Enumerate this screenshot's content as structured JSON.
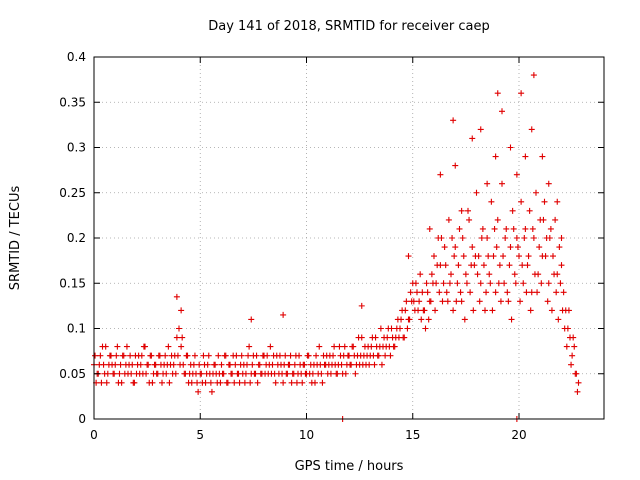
{
  "chart_data": {
    "type": "scatter",
    "title": "Day 141 of 2018, SRMTID for receiver caep",
    "xlabel": "GPS time / hours",
    "ylabel": "SRMTID / TECUs",
    "xlim": [
      0,
      24
    ],
    "ylim": [
      0,
      0.4
    ],
    "grid": true,
    "legend": "none",
    "marker": "+",
    "color": "#e00000",
    "x_ticks": [
      0,
      5,
      10,
      15,
      20
    ],
    "x_tick_labels": [
      "0",
      "5",
      "10",
      "15",
      "20"
    ],
    "y_ticks": [
      0,
      0.05,
      0.1,
      0.15,
      0.2,
      0.25,
      0.3,
      0.35,
      0.4
    ],
    "y_tick_labels": [
      "0",
      "0.05",
      "0.1",
      "0.15",
      "0.2",
      "0.25",
      "0.3",
      "0.35",
      "0.4"
    ],
    "series": [
      {
        "name": "SRMTID",
        "x": [
          0.0,
          0.1,
          0.2,
          0.3,
          0.4,
          0.5,
          0.6,
          0.7,
          0.8,
          0.9,
          1.0,
          1.1,
          1.2,
          1.3,
          1.4,
          1.5,
          1.6,
          1.7,
          1.8,
          1.9,
          2.0,
          2.1,
          2.2,
          2.3,
          2.4,
          2.5,
          2.6,
          2.7,
          2.8,
          2.9,
          3.0,
          3.1,
          3.2,
          3.3,
          3.4,
          3.5,
          3.6,
          3.7,
          3.8,
          3.9,
          4.0,
          4.1,
          4.2,
          4.3,
          4.4,
          4.5,
          4.6,
          4.7,
          4.8,
          4.9,
          5.0,
          5.1,
          5.2,
          5.3,
          5.4,
          5.5,
          5.6,
          5.7,
          5.8,
          5.9,
          6.0,
          6.1,
          6.2,
          6.3,
          6.4,
          6.5,
          6.6,
          6.7,
          6.8,
          6.9,
          7.0,
          7.1,
          7.2,
          7.3,
          7.4,
          7.5,
          7.6,
          7.7,
          7.8,
          7.9,
          8.0,
          8.1,
          8.2,
          8.3,
          8.4,
          8.5,
          8.6,
          8.7,
          8.8,
          8.9,
          9.0,
          9.1,
          9.2,
          9.3,
          9.4,
          9.5,
          9.6,
          9.7,
          9.8,
          9.9,
          10.0,
          10.1,
          10.2,
          10.3,
          10.4,
          10.5,
          10.6,
          10.7,
          10.8,
          10.9,
          11.0,
          11.1,
          11.2,
          11.3,
          11.4,
          11.5,
          11.6,
          11.7,
          11.8,
          11.9,
          12.0,
          12.1,
          12.2,
          12.3,
          12.4,
          12.5,
          12.6,
          12.7,
          12.8,
          12.9,
          13.0,
          13.1,
          13.2,
          13.3,
          13.4,
          13.5,
          13.6,
          13.7,
          13.8,
          13.9,
          14.0,
          14.1,
          14.2,
          14.3,
          14.4,
          14.5,
          14.6,
          14.7,
          14.8,
          14.9,
          15.0,
          15.1,
          15.2,
          15.3,
          15.4,
          15.5,
          15.6,
          15.7,
          15.8,
          15.9,
          16.0,
          16.1,
          16.2,
          16.3,
          16.4,
          16.5,
          16.6,
          16.7,
          16.8,
          16.9,
          17.0,
          17.1,
          17.2,
          17.3,
          17.4,
          17.5,
          17.6,
          17.7,
          17.8,
          17.9,
          18.0,
          18.1,
          18.2,
          18.3,
          18.4,
          18.5,
          18.6,
          18.7,
          18.8,
          18.9,
          19.0,
          19.1,
          19.2,
          19.3,
          19.4,
          19.5,
          19.6,
          19.7,
          19.8,
          19.9,
          20.0,
          20.1,
          20.2,
          20.3,
          20.4,
          20.5,
          20.6,
          20.7,
          20.8,
          20.9,
          21.0,
          21.1,
          21.2,
          21.3,
          21.4,
          21.5,
          21.6,
          21.7,
          21.8,
          21.9,
          22.0,
          22.1,
          22.2,
          22.3,
          22.4,
          22.5,
          22.6,
          22.7,
          22.8,
          0.05,
          0.15,
          0.25,
          0.35,
          0.45,
          0.55,
          0.65,
          0.75,
          0.85,
          0.95,
          1.05,
          1.15,
          1.25,
          1.35,
          1.45,
          1.55,
          1.65,
          1.75,
          1.85,
          1.95,
          2.05,
          2.15,
          2.25,
          2.35,
          2.45,
          2.55,
          2.65,
          2.75,
          2.85,
          2.95,
          3.05,
          3.15,
          3.25,
          3.35,
          3.45,
          3.55,
          3.65,
          3.75,
          3.85,
          3.95,
          4.05,
          4.15,
          4.25,
          4.35,
          4.45,
          4.55,
          4.65,
          4.75,
          4.85,
          4.95,
          5.05,
          5.15,
          5.25,
          5.35,
          5.45,
          5.55,
          5.65,
          5.75,
          5.85,
          5.95,
          6.05,
          6.15,
          6.25,
          6.35,
          6.45,
          6.55,
          6.65,
          6.75,
          6.85,
          6.95,
          7.05,
          7.15,
          7.25,
          7.35,
          7.45,
          7.55,
          7.65,
          7.75,
          7.85,
          7.95,
          8.05,
          8.15,
          8.25,
          8.35,
          8.45,
          8.55,
          8.65,
          8.75,
          8.85,
          8.95,
          9.05,
          9.15,
          9.25,
          9.35,
          9.45,
          9.55,
          9.65,
          9.75,
          9.85,
          9.95,
          10.05,
          10.15,
          10.25,
          10.35,
          10.45,
          10.55,
          10.65,
          10.75,
          10.85,
          10.95,
          11.05,
          11.15,
          11.25,
          11.35,
          11.45,
          11.55,
          11.65,
          11.75,
          11.85,
          11.95,
          12.05,
          12.15,
          12.25,
          12.35,
          12.45,
          12.55,
          12.65,
          12.75,
          12.85,
          12.95,
          13.05,
          13.15,
          13.25,
          13.35,
          13.45,
          13.55,
          13.65,
          13.75,
          13.85,
          13.95,
          14.05,
          14.15,
          14.25,
          14.35,
          14.45,
          14.55,
          14.65,
          14.75,
          14.85,
          14.95,
          15.05,
          15.15,
          15.25,
          15.35,
          15.45,
          15.55,
          15.65,
          15.75,
          15.85,
          15.95,
          16.05,
          16.15,
          16.25,
          16.35,
          16.45,
          16.55,
          16.65,
          16.75,
          16.85,
          16.95,
          17.05,
          17.15,
          17.25,
          17.35,
          17.45,
          17.55,
          17.65,
          17.75,
          17.85,
          17.95,
          18.05,
          18.15,
          18.25,
          18.35,
          18.45,
          18.55,
          18.65,
          18.75,
          18.85,
          18.95,
          19.05,
          19.15,
          19.25,
          19.35,
          19.45,
          19.55,
          19.65,
          19.75,
          19.85,
          19.95,
          20.05,
          20.15,
          20.25,
          20.35,
          20.45,
          20.55,
          20.65,
          20.75,
          20.85,
          20.95,
          21.05,
          21.15,
          21.25,
          21.35,
          21.45,
          21.55,
          21.65,
          21.75,
          21.85,
          21.95,
          22.05,
          22.15,
          22.25,
          22.35,
          22.45,
          22.55,
          22.65,
          22.75,
          3.9,
          4.1,
          7.4,
          8.9,
          12.6,
          14.8,
          15.8,
          16.3,
          16.9,
          17.0,
          17.3,
          17.8,
          18.2,
          18.5,
          18.9,
          19.0,
          19.2,
          19.6,
          19.9,
          20.1,
          20.3,
          20.6,
          20.7,
          21.1,
          21.4,
          21.8,
          22.0,
          11.7,
          19.9
        ],
        "y": [
          0.06,
          0.04,
          0.05,
          0.07,
          0.08,
          0.05,
          0.04,
          0.06,
          0.07,
          0.05,
          0.06,
          0.08,
          0.05,
          0.04,
          0.07,
          0.06,
          0.05,
          0.07,
          0.06,
          0.04,
          0.05,
          0.07,
          0.06,
          0.05,
          0.08,
          0.06,
          0.04,
          0.07,
          0.05,
          0.06,
          0.05,
          0.07,
          0.04,
          0.06,
          0.05,
          0.08,
          0.06,
          0.05,
          0.07,
          0.09,
          0.1,
          0.08,
          0.06,
          0.05,
          0.07,
          0.05,
          0.04,
          0.06,
          0.05,
          0.03,
          0.05,
          0.04,
          0.06,
          0.05,
          0.07,
          0.04,
          0.05,
          0.06,
          0.04,
          0.05,
          0.06,
          0.05,
          0.07,
          0.04,
          0.06,
          0.05,
          0.04,
          0.07,
          0.05,
          0.06,
          0.05,
          0.04,
          0.06,
          0.08,
          0.05,
          0.07,
          0.05,
          0.04,
          0.06,
          0.05,
          0.07,
          0.06,
          0.05,
          0.08,
          0.06,
          0.05,
          0.07,
          0.05,
          0.06,
          0.04,
          0.07,
          0.05,
          0.06,
          0.04,
          0.05,
          0.07,
          0.05,
          0.06,
          0.04,
          0.06,
          0.05,
          0.07,
          0.06,
          0.05,
          0.04,
          0.06,
          0.08,
          0.05,
          0.07,
          0.06,
          0.05,
          0.07,
          0.06,
          0.08,
          0.05,
          0.06,
          0.07,
          0.05,
          0.08,
          0.06,
          0.07,
          0.06,
          0.08,
          0.05,
          0.07,
          0.06,
          0.09,
          0.07,
          0.06,
          0.08,
          0.07,
          0.09,
          0.06,
          0.08,
          0.07,
          0.1,
          0.08,
          0.07,
          0.09,
          0.08,
          0.1,
          0.08,
          0.09,
          0.11,
          0.1,
          0.12,
          0.09,
          0.13,
          0.11,
          0.14,
          0.15,
          0.12,
          0.14,
          0.13,
          0.11,
          0.12,
          0.1,
          0.14,
          0.13,
          0.16,
          0.18,
          0.15,
          0.2,
          0.17,
          0.13,
          0.19,
          0.14,
          0.22,
          0.16,
          0.12,
          0.19,
          0.15,
          0.21,
          0.13,
          0.18,
          0.16,
          0.23,
          0.14,
          0.19,
          0.17,
          0.25,
          0.18,
          0.15,
          0.21,
          0.12,
          0.2,
          0.16,
          0.24,
          0.18,
          0.14,
          0.22,
          0.17,
          0.26,
          0.15,
          0.21,
          0.13,
          0.19,
          0.23,
          0.16,
          0.2,
          0.18,
          0.24,
          0.15,
          0.21,
          0.17,
          0.23,
          0.14,
          0.2,
          0.25,
          0.16,
          0.22,
          0.18,
          0.24,
          0.2,
          0.15,
          0.21,
          0.18,
          0.22,
          0.16,
          0.19,
          0.17,
          0.14,
          0.12,
          0.1,
          0.09,
          0.07,
          0.08,
          0.05,
          0.04,
          0.07,
          0.05,
          0.06,
          0.04,
          0.06,
          0.08,
          0.05,
          0.07,
          0.06,
          0.05,
          0.07,
          0.04,
          0.06,
          0.07,
          0.05,
          0.08,
          0.06,
          0.05,
          0.04,
          0.07,
          0.06,
          0.05,
          0.07,
          0.08,
          0.05,
          0.06,
          0.07,
          0.04,
          0.06,
          0.05,
          0.07,
          0.06,
          0.05,
          0.07,
          0.06,
          0.04,
          0.07,
          0.06,
          0.05,
          0.07,
          0.06,
          0.09,
          0.05,
          0.07,
          0.04,
          0.06,
          0.05,
          0.07,
          0.04,
          0.06,
          0.05,
          0.07,
          0.04,
          0.06,
          0.05,
          0.03,
          0.06,
          0.05,
          0.07,
          0.04,
          0.05,
          0.07,
          0.04,
          0.06,
          0.05,
          0.07,
          0.06,
          0.05,
          0.04,
          0.07,
          0.06,
          0.05,
          0.07,
          0.04,
          0.06,
          0.05,
          0.07,
          0.06,
          0.05,
          0.07,
          0.05,
          0.07,
          0.06,
          0.05,
          0.07,
          0.04,
          0.06,
          0.07,
          0.05,
          0.06,
          0.05,
          0.06,
          0.07,
          0.05,
          0.06,
          0.04,
          0.07,
          0.05,
          0.06,
          0.05,
          0.07,
          0.05,
          0.04,
          0.06,
          0.07,
          0.05,
          0.06,
          0.04,
          0.06,
          0.07,
          0.06,
          0.05,
          0.07,
          0.06,
          0.05,
          0.08,
          0.06,
          0.07,
          0.05,
          0.07,
          0.06,
          0.08,
          0.07,
          0.06,
          0.09,
          0.07,
          0.06,
          0.08,
          0.07,
          0.06,
          0.08,
          0.07,
          0.09,
          0.07,
          0.08,
          0.06,
          0.09,
          0.08,
          0.1,
          0.07,
          0.09,
          0.08,
          0.1,
          0.09,
          0.11,
          0.09,
          0.12,
          0.1,
          0.11,
          0.13,
          0.13,
          0.15,
          0.12,
          0.16,
          0.14,
          0.12,
          0.15,
          0.11,
          0.13,
          0.15,
          0.12,
          0.17,
          0.14,
          0.2,
          0.15,
          0.17,
          0.13,
          0.15,
          0.2,
          0.18,
          0.13,
          0.17,
          0.14,
          0.2,
          0.11,
          0.15,
          0.22,
          0.17,
          0.12,
          0.18,
          0.16,
          0.13,
          0.2,
          0.17,
          0.14,
          0.18,
          0.15,
          0.12,
          0.21,
          0.19,
          0.15,
          0.13,
          0.18,
          0.2,
          0.14,
          0.17,
          0.11,
          0.21,
          0.15,
          0.19,
          0.13,
          0.17,
          0.2,
          0.14,
          0.18,
          0.12,
          0.21,
          0.16,
          0.14,
          0.19,
          0.15,
          0.22,
          0.18,
          0.13,
          0.2,
          0.12,
          0.16,
          0.14,
          0.11,
          0.15,
          0.12,
          0.1,
          0.08,
          0.12,
          0.06,
          0.09,
          0.05,
          0.03,
          0.135,
          0.12,
          0.11,
          0.115,
          0.125,
          0.18,
          0.21,
          0.27,
          0.33,
          0.28,
          0.23,
          0.31,
          0.32,
          0.26,
          0.29,
          0.36,
          0.34,
          0.3,
          0.27,
          0.36,
          0.29,
          0.32,
          0.38,
          0.29,
          0.26,
          0.24,
          0.2,
          0.0,
          0.0
        ]
      }
    ]
  }
}
